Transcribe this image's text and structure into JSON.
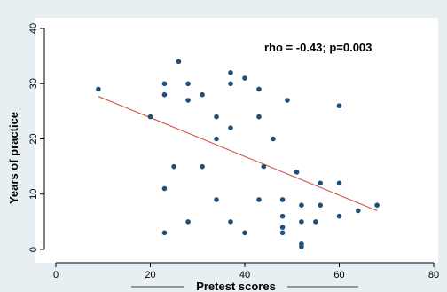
{
  "chart_data": {
    "type": "scatter",
    "xlabel": "Pretest scores",
    "ylabel": "Years of practice",
    "annotation": "rho = -0.43; p=0.003",
    "xlim": [
      0,
      80
    ],
    "ylim": [
      0,
      40
    ],
    "x_ticks": [
      0,
      20,
      40,
      60,
      80
    ],
    "y_ticks": [
      0,
      10,
      20,
      30,
      40
    ],
    "grid": false,
    "colors": {
      "outer_background": "#e8eff3",
      "plot_background": "#ffffff",
      "marker": "#1f4e79",
      "fit_line": "#d0605a",
      "axis": "#000000"
    },
    "series": [
      {
        "points": [
          {
            "x": 9,
            "y": 29
          },
          {
            "x": 20,
            "y": 24
          },
          {
            "x": 23,
            "y": 30
          },
          {
            "x": 23,
            "y": 28
          },
          {
            "x": 23,
            "y": 11
          },
          {
            "x": 23,
            "y": 3
          },
          {
            "x": 25,
            "y": 15
          },
          {
            "x": 26,
            "y": 34
          },
          {
            "x": 28,
            "y": 30
          },
          {
            "x": 28,
            "y": 27
          },
          {
            "x": 28,
            "y": 5
          },
          {
            "x": 31,
            "y": 28
          },
          {
            "x": 31,
            "y": 15
          },
          {
            "x": 34,
            "y": 24
          },
          {
            "x": 34,
            "y": 20
          },
          {
            "x": 34,
            "y": 9
          },
          {
            "x": 37,
            "y": 32
          },
          {
            "x": 37,
            "y": 30
          },
          {
            "x": 37,
            "y": 22
          },
          {
            "x": 37,
            "y": 5
          },
          {
            "x": 40,
            "y": 31
          },
          {
            "x": 40,
            "y": 3
          },
          {
            "x": 43,
            "y": 29
          },
          {
            "x": 43,
            "y": 24
          },
          {
            "x": 43,
            "y": 9
          },
          {
            "x": 44,
            "y": 15
          },
          {
            "x": 46,
            "y": 20
          },
          {
            "x": 48,
            "y": 9
          },
          {
            "x": 48,
            "y": 6
          },
          {
            "x": 48,
            "y": 4
          },
          {
            "x": 48,
            "y": 3
          },
          {
            "x": 49,
            "y": 27
          },
          {
            "x": 51,
            "y": 14
          },
          {
            "x": 52,
            "y": 8
          },
          {
            "x": 52,
            "y": 5
          },
          {
            "x": 52,
            "y": 1
          },
          {
            "x": 52,
            "y": 0.5
          },
          {
            "x": 55,
            "y": 5
          },
          {
            "x": 56,
            "y": 12
          },
          {
            "x": 56,
            "y": 8
          },
          {
            "x": 60,
            "y": 26
          },
          {
            "x": 60,
            "y": 12
          },
          {
            "x": 60,
            "y": 6
          },
          {
            "x": 64,
            "y": 7
          },
          {
            "x": 68,
            "y": 8
          }
        ]
      }
    ],
    "fit_line": {
      "x1": 9,
      "y1": 27.7,
      "x2": 68,
      "y2": 7
    }
  }
}
